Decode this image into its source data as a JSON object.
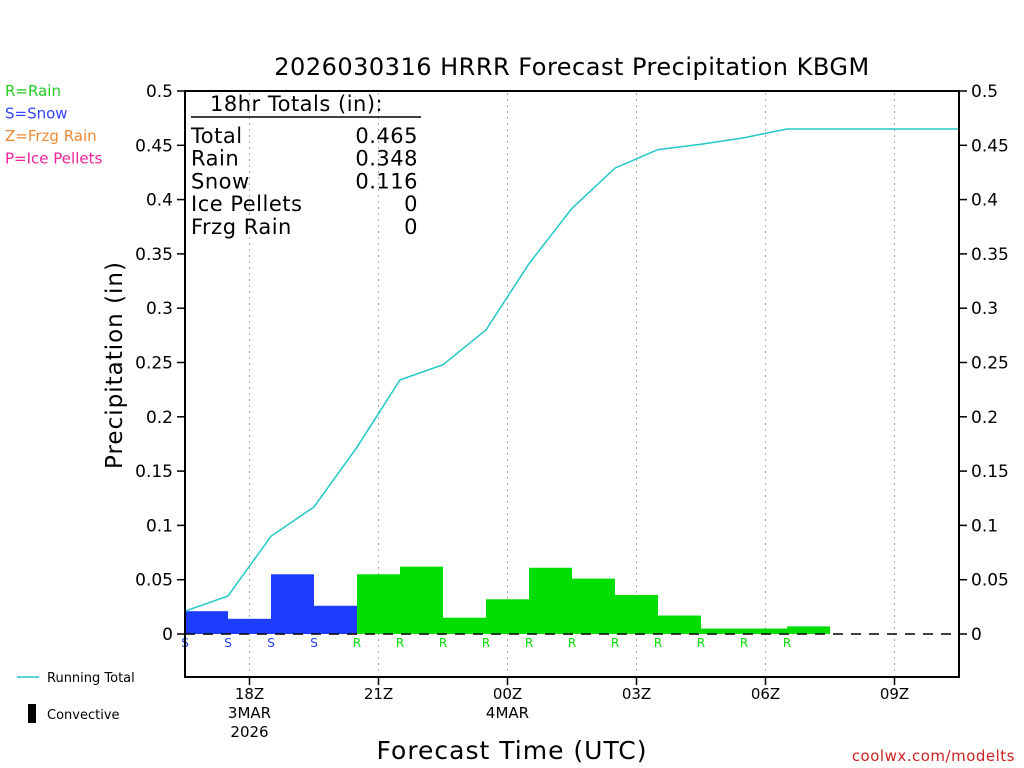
{
  "chart_data": {
    "type": "bar",
    "title": "2026030316 HRRR Forecast Precipitation KBGM",
    "ylabel": "Precipitation (in)",
    "xlabel": "Forecast Time (UTC)",
    "ylim": [
      -0.04,
      0.5
    ],
    "yticks": [
      0,
      0.05,
      0.1,
      0.15,
      0.2,
      0.25,
      0.3,
      0.35,
      0.4,
      0.45,
      0.5
    ],
    "ytick_labels": [
      "0",
      "0.05",
      "0.1",
      "0.15",
      "0.2",
      "0.25",
      "0.3",
      "0.35",
      "0.4",
      "0.45",
      "0.5"
    ],
    "xlim": [
      16.5,
      34.5
    ],
    "xticks": [
      {
        "hour": 18,
        "lines": [
          "18Z",
          "3MAR",
          "2026"
        ]
      },
      {
        "hour": 21,
        "lines": [
          "21Z"
        ]
      },
      {
        "hour": 24,
        "lines": [
          "00Z",
          "4MAR"
        ]
      },
      {
        "hour": 27,
        "lines": [
          "03Z"
        ]
      },
      {
        "hour": 30,
        "lines": [
          "06Z"
        ]
      },
      {
        "hour": 33,
        "lines": [
          "09Z"
        ]
      }
    ],
    "hours": [
      17,
      18,
      19,
      20,
      21,
      22,
      23,
      24,
      25,
      26,
      27,
      28,
      29,
      30,
      31,
      32,
      33,
      34
    ],
    "hourly_precip": [
      0.021,
      0.014,
      0.055,
      0.026,
      0.055,
      0.062,
      0.015,
      0.032,
      0.061,
      0.051,
      0.036,
      0.017,
      0.005,
      0.005,
      0.007,
      0.0,
      0.0,
      0.0
    ],
    "precip_type": [
      "S",
      "S",
      "S",
      "S",
      "R",
      "R",
      "R",
      "R",
      "R",
      "R",
      "R",
      "R",
      "R",
      "R",
      "R",
      "",
      "",
      ""
    ],
    "running_total": [
      0.021,
      0.035,
      0.09,
      0.117,
      0.172,
      0.234,
      0.248,
      0.28,
      0.341,
      0.392,
      0.429,
      0.446,
      0.451,
      0.457,
      0.465,
      0.465,
      0.465,
      0.465
    ],
    "colors": {
      "R": "#00dd00",
      "S": "#1e3cff",
      "Z": "#ff9933",
      "P": "#ff3399",
      "total": "#22c8c8"
    }
  },
  "totals_box": {
    "header": "18hr Totals (in):",
    "rows": [
      {
        "label": "Total",
        "value": "0.465"
      },
      {
        "label": "Rain",
        "value": "0.348"
      },
      {
        "label": "Snow",
        "value": "0.116"
      },
      {
        "label": "Ice Pellets",
        "value": "0"
      },
      {
        "label": "Frzg Rain",
        "value": "0"
      }
    ]
  },
  "type_legend": [
    {
      "text": "R=Rain",
      "color": "#22cc22"
    },
    {
      "text": "S=Snow",
      "color": "#3344ff"
    },
    {
      "text": "Z=Frzg Rain",
      "color": "#ee8833"
    },
    {
      "text": "P=Ice Pellets",
      "color": "#ee2299"
    }
  ],
  "series_legend": {
    "running_total": "Running Total",
    "convective": "Convective"
  },
  "credit": "coolwx.com/modelts"
}
